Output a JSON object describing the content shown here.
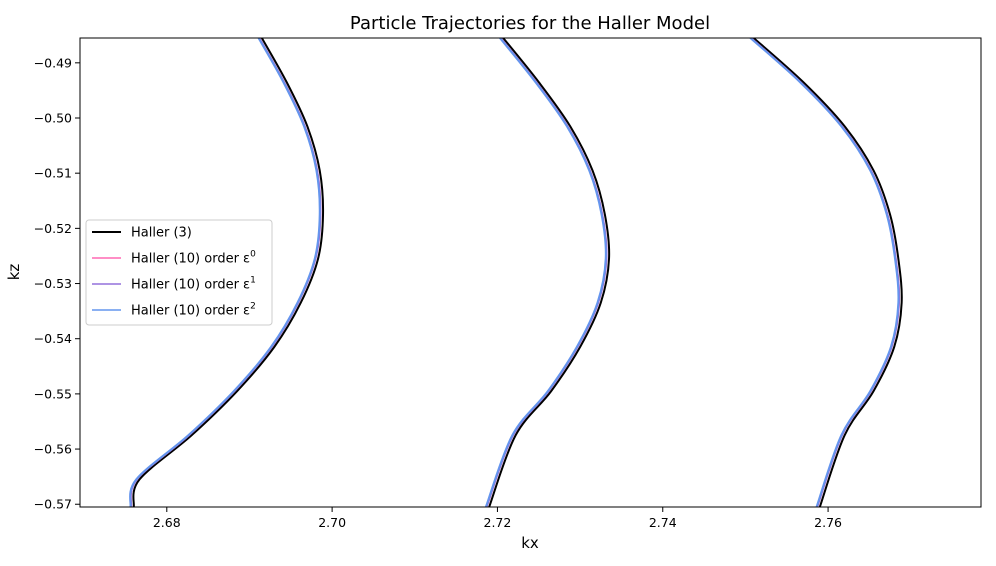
{
  "chart_data": {
    "type": "line",
    "title": "Particle Trajectories for the Haller Model",
    "xlabel": "kx",
    "ylabel": "kz",
    "xlim": [
      2.6695,
      2.7785
    ],
    "ylim": [
      -0.5705,
      -0.4855
    ],
    "xticks": [
      2.68,
      2.7,
      2.72,
      2.74,
      2.76
    ],
    "xtick_labels": [
      "2.68",
      "2.70",
      "2.72",
      "2.74",
      "2.76"
    ],
    "yticks": [
      -0.49,
      -0.5,
      -0.51,
      -0.52,
      -0.53,
      -0.54,
      -0.55,
      -0.56,
      -0.57
    ],
    "ytick_labels": [
      "−0.49",
      "−0.50",
      "−0.51",
      "−0.52",
      "−0.53",
      "−0.54",
      "−0.55",
      "−0.56",
      "−0.57"
    ],
    "grid": false,
    "legend_position": "center-left",
    "legend": [
      {
        "name": "Haller (3)",
        "base": "Haller (3)",
        "sup": "",
        "color": "#000000"
      },
      {
        "name": "Haller (10) order ε^0",
        "base": "Haller (10) order ε",
        "sup": "0",
        "color": "#ff69b4"
      },
      {
        "name": "Haller (10) order ε^1",
        "base": "Haller (10) order ε",
        "sup": "1",
        "color": "#9370db"
      },
      {
        "name": "Haller (10) order ε^2",
        "base": "Haller (10) order ε",
        "sup": "2",
        "color": "#6495ed"
      }
    ],
    "series": [
      {
        "name": "Haller (3)",
        "color": "#000000",
        "width": 2,
        "arcs": [
          [
            [
              2.6915,
              -0.4855
            ],
            [
              2.6945,
              -0.4935
            ],
            [
              2.697,
              -0.5015
            ],
            [
              2.6985,
              -0.5095
            ],
            [
              2.6989,
              -0.5175
            ],
            [
              2.6983,
              -0.5255
            ],
            [
              2.6962,
              -0.5335
            ],
            [
              2.693,
              -0.5415
            ],
            [
              2.6885,
              -0.5495
            ],
            [
              2.683,
              -0.5575
            ],
            [
              2.6767,
              -0.5655
            ],
            [
              2.676,
              -0.5705
            ]
          ],
          [
            [
              2.7207,
              -0.4855
            ],
            [
              2.725,
              -0.4935
            ],
            [
              2.7288,
              -0.5015
            ],
            [
              2.7315,
              -0.5095
            ],
            [
              2.733,
              -0.5175
            ],
            [
              2.7335,
              -0.5255
            ],
            [
              2.7325,
              -0.5335
            ],
            [
              2.73,
              -0.5415
            ],
            [
              2.7265,
              -0.5495
            ],
            [
              2.7222,
              -0.5575
            ],
            [
              2.719,
              -0.5705
            ]
          ],
          [
            [
              2.751,
              -0.4855
            ],
            [
              2.757,
              -0.4935
            ],
            [
              2.762,
              -0.5015
            ],
            [
              2.7655,
              -0.5095
            ],
            [
              2.7675,
              -0.5175
            ],
            [
              2.7685,
              -0.5255
            ],
            [
              2.7689,
              -0.5335
            ],
            [
              2.768,
              -0.5415
            ],
            [
              2.7655,
              -0.5495
            ],
            [
              2.762,
              -0.5575
            ],
            [
              2.759,
              -0.5705
            ]
          ]
        ]
      },
      {
        "name": "Haller (10) order ε^0",
        "color": "#ff69b4",
        "width": 1.6,
        "arcs": [
          [
            [
              2.6912,
              -0.4855
            ],
            [
              2.6942,
              -0.4935
            ],
            [
              2.6967,
              -0.5015
            ],
            [
              2.6982,
              -0.5095
            ],
            [
              2.6986,
              -0.5175
            ],
            [
              2.698,
              -0.5255
            ],
            [
              2.6959,
              -0.5335
            ],
            [
              2.6927,
              -0.5415
            ],
            [
              2.6882,
              -0.5495
            ],
            [
              2.6827,
              -0.5575
            ],
            [
              2.6764,
              -0.5655
            ],
            [
              2.6757,
              -0.5705
            ]
          ],
          [
            [
              2.7204,
              -0.4855
            ],
            [
              2.7247,
              -0.4935
            ],
            [
              2.7285,
              -0.5015
            ],
            [
              2.7312,
              -0.5095
            ],
            [
              2.7327,
              -0.5175
            ],
            [
              2.7332,
              -0.5255
            ],
            [
              2.7322,
              -0.5335
            ],
            [
              2.7297,
              -0.5415
            ],
            [
              2.7262,
              -0.5495
            ],
            [
              2.7219,
              -0.5575
            ],
            [
              2.7187,
              -0.5705
            ]
          ],
          [
            [
              2.7507,
              -0.4855
            ],
            [
              2.7567,
              -0.4935
            ],
            [
              2.7617,
              -0.5015
            ],
            [
              2.7652,
              -0.5095
            ],
            [
              2.7672,
              -0.5175
            ],
            [
              2.7682,
              -0.5255
            ],
            [
              2.7686,
              -0.5335
            ],
            [
              2.7677,
              -0.5415
            ],
            [
              2.7652,
              -0.5495
            ],
            [
              2.7617,
              -0.5575
            ],
            [
              2.7587,
              -0.5705
            ]
          ]
        ]
      },
      {
        "name": "Haller (10) order ε^1",
        "color": "#9370db",
        "width": 1.6,
        "arcs": [
          [
            [
              2.6912,
              -0.4855
            ],
            [
              2.6942,
              -0.4935
            ],
            [
              2.6967,
              -0.5015
            ],
            [
              2.6982,
              -0.5095
            ],
            [
              2.6986,
              -0.5175
            ],
            [
              2.698,
              -0.5255
            ],
            [
              2.6959,
              -0.5335
            ],
            [
              2.6927,
              -0.5415
            ],
            [
              2.6882,
              -0.5495
            ],
            [
              2.6827,
              -0.5575
            ],
            [
              2.6764,
              -0.5655
            ],
            [
              2.6757,
              -0.5705
            ]
          ],
          [
            [
              2.7204,
              -0.4855
            ],
            [
              2.7247,
              -0.4935
            ],
            [
              2.7285,
              -0.5015
            ],
            [
              2.7312,
              -0.5095
            ],
            [
              2.7327,
              -0.5175
            ],
            [
              2.7332,
              -0.5255
            ],
            [
              2.7322,
              -0.5335
            ],
            [
              2.7297,
              -0.5415
            ],
            [
              2.7262,
              -0.5495
            ],
            [
              2.7219,
              -0.5575
            ],
            [
              2.7187,
              -0.5705
            ]
          ],
          [
            [
              2.7507,
              -0.4855
            ],
            [
              2.7567,
              -0.4935
            ],
            [
              2.7617,
              -0.5015
            ],
            [
              2.7652,
              -0.5095
            ],
            [
              2.7672,
              -0.5175
            ],
            [
              2.7682,
              -0.5255
            ],
            [
              2.7686,
              -0.5335
            ],
            [
              2.7677,
              -0.5415
            ],
            [
              2.7652,
              -0.5495
            ],
            [
              2.7617,
              -0.5575
            ],
            [
              2.7587,
              -0.5705
            ]
          ]
        ]
      },
      {
        "name": "Haller (10) order ε^2",
        "color": "#6495ed",
        "width": 2,
        "arcs": [
          [
            [
              2.6911,
              -0.4855
            ],
            [
              2.6941,
              -0.4935
            ],
            [
              2.6966,
              -0.5015
            ],
            [
              2.6981,
              -0.5095
            ],
            [
              2.6985,
              -0.5175
            ],
            [
              2.6979,
              -0.5255
            ],
            [
              2.6958,
              -0.5335
            ],
            [
              2.6926,
              -0.5415
            ],
            [
              2.6881,
              -0.5495
            ],
            [
              2.6826,
              -0.5575
            ],
            [
              2.6763,
              -0.5655
            ],
            [
              2.6756,
              -0.5705
            ]
          ],
          [
            [
              2.7203,
              -0.4855
            ],
            [
              2.7246,
              -0.4935
            ],
            [
              2.7284,
              -0.5015
            ],
            [
              2.7311,
              -0.5095
            ],
            [
              2.7326,
              -0.5175
            ],
            [
              2.7331,
              -0.5255
            ],
            [
              2.7321,
              -0.5335
            ],
            [
              2.7296,
              -0.5415
            ],
            [
              2.7261,
              -0.5495
            ],
            [
              2.7218,
              -0.5575
            ],
            [
              2.7186,
              -0.5705
            ]
          ],
          [
            [
              2.7506,
              -0.4855
            ],
            [
              2.7566,
              -0.4935
            ],
            [
              2.7616,
              -0.5015
            ],
            [
              2.7651,
              -0.5095
            ],
            [
              2.7671,
              -0.5175
            ],
            [
              2.7681,
              -0.5255
            ],
            [
              2.7685,
              -0.5335
            ],
            [
              2.7676,
              -0.5415
            ],
            [
              2.7651,
              -0.5495
            ],
            [
              2.7616,
              -0.5575
            ],
            [
              2.7586,
              -0.5705
            ]
          ]
        ]
      }
    ]
  }
}
